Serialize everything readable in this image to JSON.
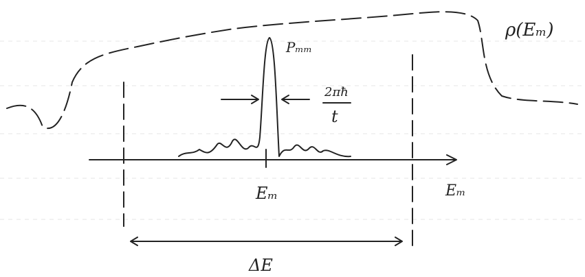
{
  "labels": {
    "density": "ρ(Eₘ)",
    "peak": "Pₘₘ",
    "width_numerator": "2πħ",
    "width_denominator": "t",
    "center": "Eₘ",
    "axis": "Eₘ",
    "interval": "ΔE"
  }
}
